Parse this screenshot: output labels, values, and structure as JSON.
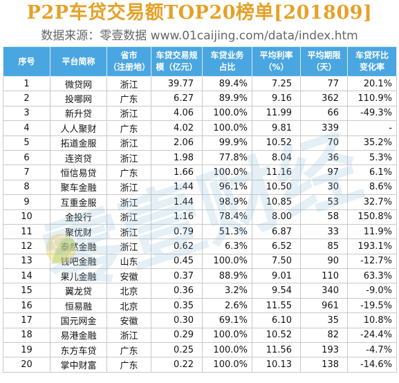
{
  "title": "P2P车贷交易额TOP20榜单[201809]",
  "source": "数据来源：零壹数据 www.01caijing.com/data/index.htm",
  "watermark": "零壹财经",
  "colors": {
    "title": "#e5a127",
    "header_bg": "#4aa6e0",
    "header_text": "#ffffff"
  },
  "columns": [
    [
      "序号"
    ],
    [
      "平台简称"
    ],
    [
      "省市",
      "（注册地）"
    ],
    [
      "车贷交易规",
      "模（亿元）"
    ],
    [
      "车贷业务",
      "占比"
    ],
    [
      "平均利率",
      "（%）"
    ],
    [
      "平均期限",
      "（天）"
    ],
    [
      "车贷环比",
      "变化率"
    ]
  ],
  "rows": [
    [
      "1",
      "微贷网",
      "浙江",
      "39.77",
      "89.4%",
      "7.25",
      "77",
      "20.1%"
    ],
    [
      "2",
      "投哪网",
      "广东",
      "6.27",
      "89.9%",
      "9.16",
      "362",
      "110.9%"
    ],
    [
      "3",
      "新升贷",
      "浙江",
      "4.06",
      "100.0%",
      "11.99",
      "66",
      "-49.3%"
    ],
    [
      "4",
      "人人聚财",
      "广东",
      "4.02",
      "100.0%",
      "9.81",
      "339",
      "-"
    ],
    [
      "5",
      "拓道金服",
      "浙江",
      "2.06",
      "99.9%",
      "10.52",
      "70",
      "35.2%"
    ],
    [
      "6",
      "连资贷",
      "浙江",
      "1.98",
      "77.8%",
      "8.04",
      "36",
      "5.3%"
    ],
    [
      "7",
      "恒信易贷",
      "广东",
      "1.66",
      "100.0%",
      "11.16",
      "97",
      "6.1%"
    ],
    [
      "8",
      "聚车金融",
      "浙江",
      "1.44",
      "96.1%",
      "10.50",
      "30",
      "8.6%"
    ],
    [
      "9",
      "互重金服",
      "浙江",
      "1.44",
      "98.9%",
      "10.85",
      "53",
      "32.7%"
    ],
    [
      "10",
      "金投行",
      "浙江",
      "1.16",
      "78.4%",
      "8.00",
      "58",
      "150.8%"
    ],
    [
      "11",
      "聚优财",
      "浙江",
      "0.79",
      "51.3%",
      "6.87",
      "33",
      "11.9%"
    ],
    [
      "12",
      "泰然金融",
      "浙江",
      "0.62",
      "6.3%",
      "6.52",
      "85",
      "193.1%"
    ],
    [
      "13",
      "钱吧金融",
      "山东",
      "0.45",
      "100.0%",
      "7.50",
      "90",
      "-12.7%"
    ],
    [
      "14",
      "果儿金融",
      "安徽",
      "0.37",
      "88.9%",
      "9.01",
      "110",
      "63.3%"
    ],
    [
      "15",
      "翼龙贷",
      "北京",
      "0.36",
      "3.2%",
      "9.54",
      "340",
      "-9.0%"
    ],
    [
      "16",
      "恒易融",
      "北京",
      "0.35",
      "2.6%",
      "11.55",
      "961",
      "-19.5%"
    ],
    [
      "17",
      "国元网金",
      "安徽",
      "0.30",
      "69.1%",
      "6.10",
      "35",
      "10.8%"
    ],
    [
      "18",
      "易港金融",
      "浙江",
      "0.29",
      "100.0%",
      "10.52",
      "82",
      "-24.4%"
    ],
    [
      "19",
      "东方车贷",
      "广东",
      "0.25",
      "100.0%",
      "11.56",
      "193",
      "-4.7%"
    ],
    [
      "20",
      "掌中财富",
      "广东",
      "0.22",
      "100.0%",
      "10.13",
      "138",
      "-14.6%"
    ]
  ]
}
